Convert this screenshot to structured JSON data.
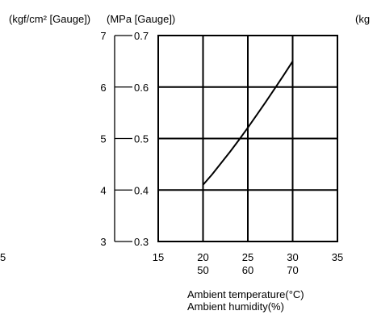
{
  "chart_data": {
    "type": "line",
    "left_unit_label": "(kgf/cm² [Gauge])",
    "right_unit_label": "(MPa [Gauge])",
    "clipped_unit_label": "(kg",
    "clipped_tick_label": "5",
    "outer_y_ticks": [
      "7",
      "6",
      "5",
      "4",
      "3"
    ],
    "inner_y_ticks": [
      "0.7",
      "0.6",
      "0.5",
      "0.4",
      "0.3"
    ],
    "x_temp_ticks": [
      "15",
      "20",
      "25",
      "30",
      "35"
    ],
    "x_humidity_ticks": [
      "50",
      "60",
      "70"
    ],
    "xlabel": "Ambient temperature(°C)",
    "xlabel2": "Ambient humidity(%)",
    "xlim": [
      15,
      35
    ],
    "ylim": [
      0.3,
      0.7
    ],
    "grid": true,
    "series": [
      {
        "x": [
          20,
          21,
          22,
          23,
          24,
          25,
          26,
          27,
          28,
          29,
          30
        ],
        "values": [
          0.41,
          0.43,
          0.452,
          0.474,
          0.497,
          0.521,
          0.546,
          0.571,
          0.597,
          0.623,
          0.65
        ]
      }
    ]
  }
}
